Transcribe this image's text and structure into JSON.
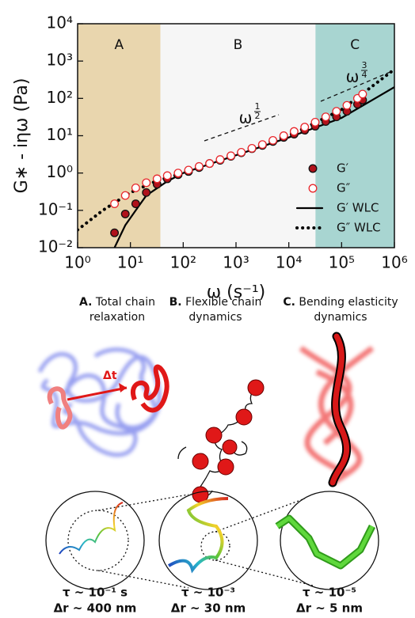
{
  "chart_data": {
    "type": "scatter",
    "xlabel": "ω (s⁻¹)",
    "ylabel": "G∗ - iηω (Pa)",
    "log_x": true,
    "log_y": true,
    "xlim": [
      1,
      1000000
    ],
    "ylim": [
      0.01,
      10000
    ],
    "xticks": [
      {
        "value": 1,
        "label": "10⁰"
      },
      {
        "value": 10,
        "label": "10¹"
      },
      {
        "value": 100,
        "label": "10²"
      },
      {
        "value": 1000,
        "label": "10³"
      },
      {
        "value": 10000,
        "label": "10⁴"
      },
      {
        "value": 100000,
        "label": "10⁵"
      },
      {
        "value": 1000000,
        "label": "10⁶"
      }
    ],
    "yticks": [
      {
        "value": 0.01,
        "label": "10⁻²"
      },
      {
        "value": 0.1,
        "label": "10⁻¹"
      },
      {
        "value": 1,
        "label": "10⁰"
      },
      {
        "value": 10,
        "label": "10¹"
      },
      {
        "value": 100,
        "label": "10²"
      },
      {
        "value": 1000,
        "label": "10³"
      },
      {
        "value": 10000,
        "label": "10⁴"
      }
    ],
    "regions": [
      {
        "label": "A",
        "from": 1,
        "to": 37,
        "color": "#e9d6ae"
      },
      {
        "label": "B",
        "from": 37,
        "to": 32000,
        "color": "#f6f6f6"
      },
      {
        "label": "C",
        "from": 32000,
        "to": 1000000,
        "color": "#a8d5d1"
      }
    ],
    "legend": "lower right",
    "series": [
      {
        "name": "G′",
        "style": "filled",
        "color": "#b0121b",
        "x": [
          5,
          8,
          12.6,
          20,
          32,
          50,
          80,
          126,
          200,
          316,
          500,
          800,
          1260,
          2000,
          3160,
          5000,
          8000,
          12600,
          20000,
          31600,
          50000,
          80000,
          126000,
          200000,
          250000
        ],
        "values": [
          0.025,
          0.08,
          0.15,
          0.3,
          0.5,
          0.7,
          0.9,
          1.1,
          1.4,
          1.8,
          2.2,
          2.8,
          3.5,
          4.5,
          5.5,
          7,
          9,
          11,
          14,
          18,
          24,
          32,
          45,
          70,
          90
        ]
      },
      {
        "name": "G″",
        "style": "open",
        "color": "#e8262b",
        "x": [
          5,
          8,
          12.6,
          20,
          32,
          50,
          80,
          126,
          200,
          316,
          500,
          800,
          1260,
          2000,
          3160,
          5000,
          8000,
          12600,
          20000,
          31600,
          50000,
          80000,
          126000,
          200000,
          250000
        ],
        "values": [
          0.15,
          0.25,
          0.4,
          0.55,
          0.7,
          0.85,
          1,
          1.2,
          1.5,
          1.8,
          2.3,
          2.9,
          3.6,
          4.6,
          5.8,
          7.5,
          10,
          13,
          17,
          23,
          32,
          45,
          65,
          100,
          130
        ]
      },
      {
        "name": "G′ WLC",
        "style": "solid",
        "color": "#000000",
        "x": [
          5,
          8,
          12.6,
          20,
          50,
          100,
          1000,
          10000,
          100000,
          1000000
        ],
        "values": [
          0.01,
          0.04,
          0.1,
          0.25,
          0.6,
          1,
          3,
          9,
          30,
          200
        ]
      },
      {
        "name": "G″ WLC",
        "style": "dotted",
        "color": "#000000",
        "x": [
          1,
          3,
          10,
          30,
          100,
          1000,
          10000,
          100000,
          1000000
        ],
        "values": [
          0.03,
          0.1,
          0.3,
          0.6,
          1,
          3,
          10,
          50,
          600
        ]
      }
    ],
    "annotations": [
      {
        "base": "ω",
        "num": "1",
        "den": "2"
      },
      {
        "base": "ω",
        "num": "3",
        "den": "4"
      }
    ]
  },
  "panels": [
    {
      "letter": "A.",
      "line1": "Total chain",
      "line2": "relaxation",
      "arrow": "Δt",
      "tau": "τ ~ 10⁻¹ s",
      "dr": "Δr ~ 400 nm"
    },
    {
      "letter": "B.",
      "line1": "Flexible chain",
      "line2": "dynamics",
      "tau": "τ ~ 10⁻³",
      "dr": "Δr ~ 30 nm"
    },
    {
      "letter": "C.",
      "line1": "Bending elasticity",
      "line2": "dynamics",
      "tau": "τ ~ 10⁻⁵",
      "dr": "Δr ~ 5 nm"
    }
  ]
}
